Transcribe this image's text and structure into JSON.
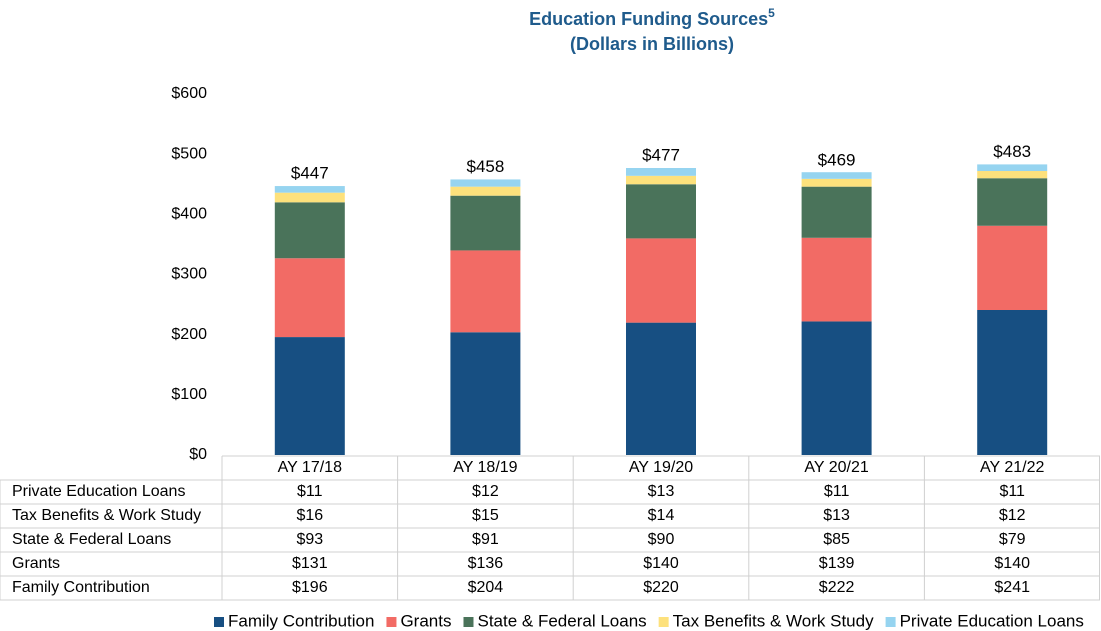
{
  "chart_data": {
    "type": "stacked_bar",
    "title": "Education Funding Sources",
    "title_note": "5",
    "subtitle": "(Dollars in Billions)",
    "categories": [
      "AY 17/18",
      "AY 18/19",
      "AY 19/20",
      "AY 20/21",
      "AY 21/22"
    ],
    "series": [
      {
        "name": "Family Contribution",
        "color": "#174f82",
        "values": [
          196,
          204,
          220,
          222,
          241
        ],
        "value_labels": [
          "$196",
          "$204",
          "$220",
          "$222",
          "$241"
        ]
      },
      {
        "name": "Grants",
        "color": "#f26b65",
        "values": [
          131,
          136,
          140,
          139,
          140
        ],
        "value_labels": [
          "$131",
          "$136",
          "$140",
          "$139",
          "$140"
        ]
      },
      {
        "name": "State & Federal Loans",
        "color": "#4a735a",
        "values": [
          93,
          91,
          90,
          85,
          79
        ],
        "value_labels": [
          "$93",
          "$91",
          "$90",
          "$85",
          "$79"
        ]
      },
      {
        "name": "Tax Benefits & Work Study",
        "color": "#fde17c",
        "values": [
          16,
          15,
          14,
          13,
          12
        ],
        "value_labels": [
          "$16",
          "$15",
          "$14",
          "$13",
          "$12"
        ]
      },
      {
        "name": "Private Education Loans",
        "color": "#96d4f0",
        "values": [
          11,
          12,
          13,
          11,
          11
        ],
        "value_labels": [
          "$11",
          "$12",
          "$13",
          "$11",
          "$11"
        ]
      }
    ],
    "totals": [
      447,
      458,
      477,
      469,
      483
    ],
    "total_labels": [
      "$447",
      "$458",
      "$477",
      "$469",
      "$483"
    ],
    "ylim": [
      0,
      600
    ],
    "yticks": [
      {
        "value": 0,
        "label": "$0"
      },
      {
        "value": 100,
        "label": "$100"
      },
      {
        "value": 200,
        "label": "$200"
      },
      {
        "value": 300,
        "label": "$300"
      },
      {
        "value": 400,
        "label": "$400"
      },
      {
        "value": 500,
        "label": "$500"
      },
      {
        "value": 600,
        "label": "$600"
      }
    ],
    "legend": "bottom-right"
  }
}
